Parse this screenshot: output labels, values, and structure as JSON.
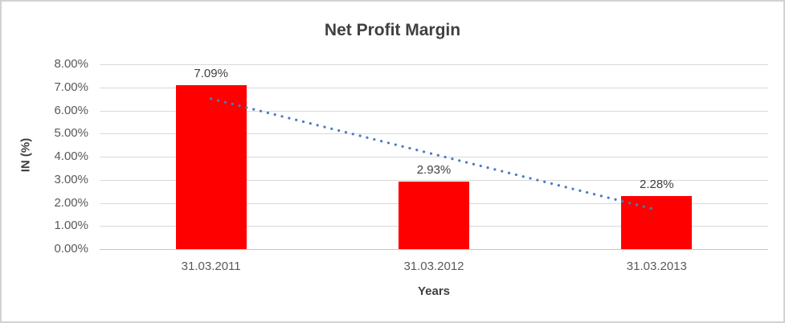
{
  "frame": {
    "background": "#ffffff",
    "border_color": "#d2d2d2"
  },
  "chart_data": {
    "type": "bar",
    "title": "Net Profit Margin",
    "categories": [
      "31.03.2011",
      "31.03.2012",
      "31.03.2013"
    ],
    "values": [
      7.09,
      2.93,
      2.28
    ],
    "data_labels": [
      "7.09%",
      "2.93%",
      "2.28%"
    ],
    "xlabel": "Years",
    "ylabel": "IN (%)",
    "ylim": [
      0,
      8
    ],
    "ytick_step": 1,
    "ytick_labels": [
      "0.00%",
      "1.00%",
      "2.00%",
      "3.00%",
      "4.00%",
      "5.00%",
      "6.00%",
      "7.00%",
      "8.00%"
    ],
    "grid": true,
    "legend": "none",
    "bar_color": "#ff0000",
    "gridline_color": "#d9d9d9",
    "axis_line_color": "#c6c6c6",
    "tick_text_color": "#595959",
    "label_text_color": "#404040",
    "title_color": "#404040",
    "trendline": {
      "type": "linear",
      "style": "dotted",
      "color": "#4a7dbd",
      "from_category_index": 0,
      "to_category_index": 2,
      "start_value": 6.51,
      "end_value": 1.7
    }
  }
}
